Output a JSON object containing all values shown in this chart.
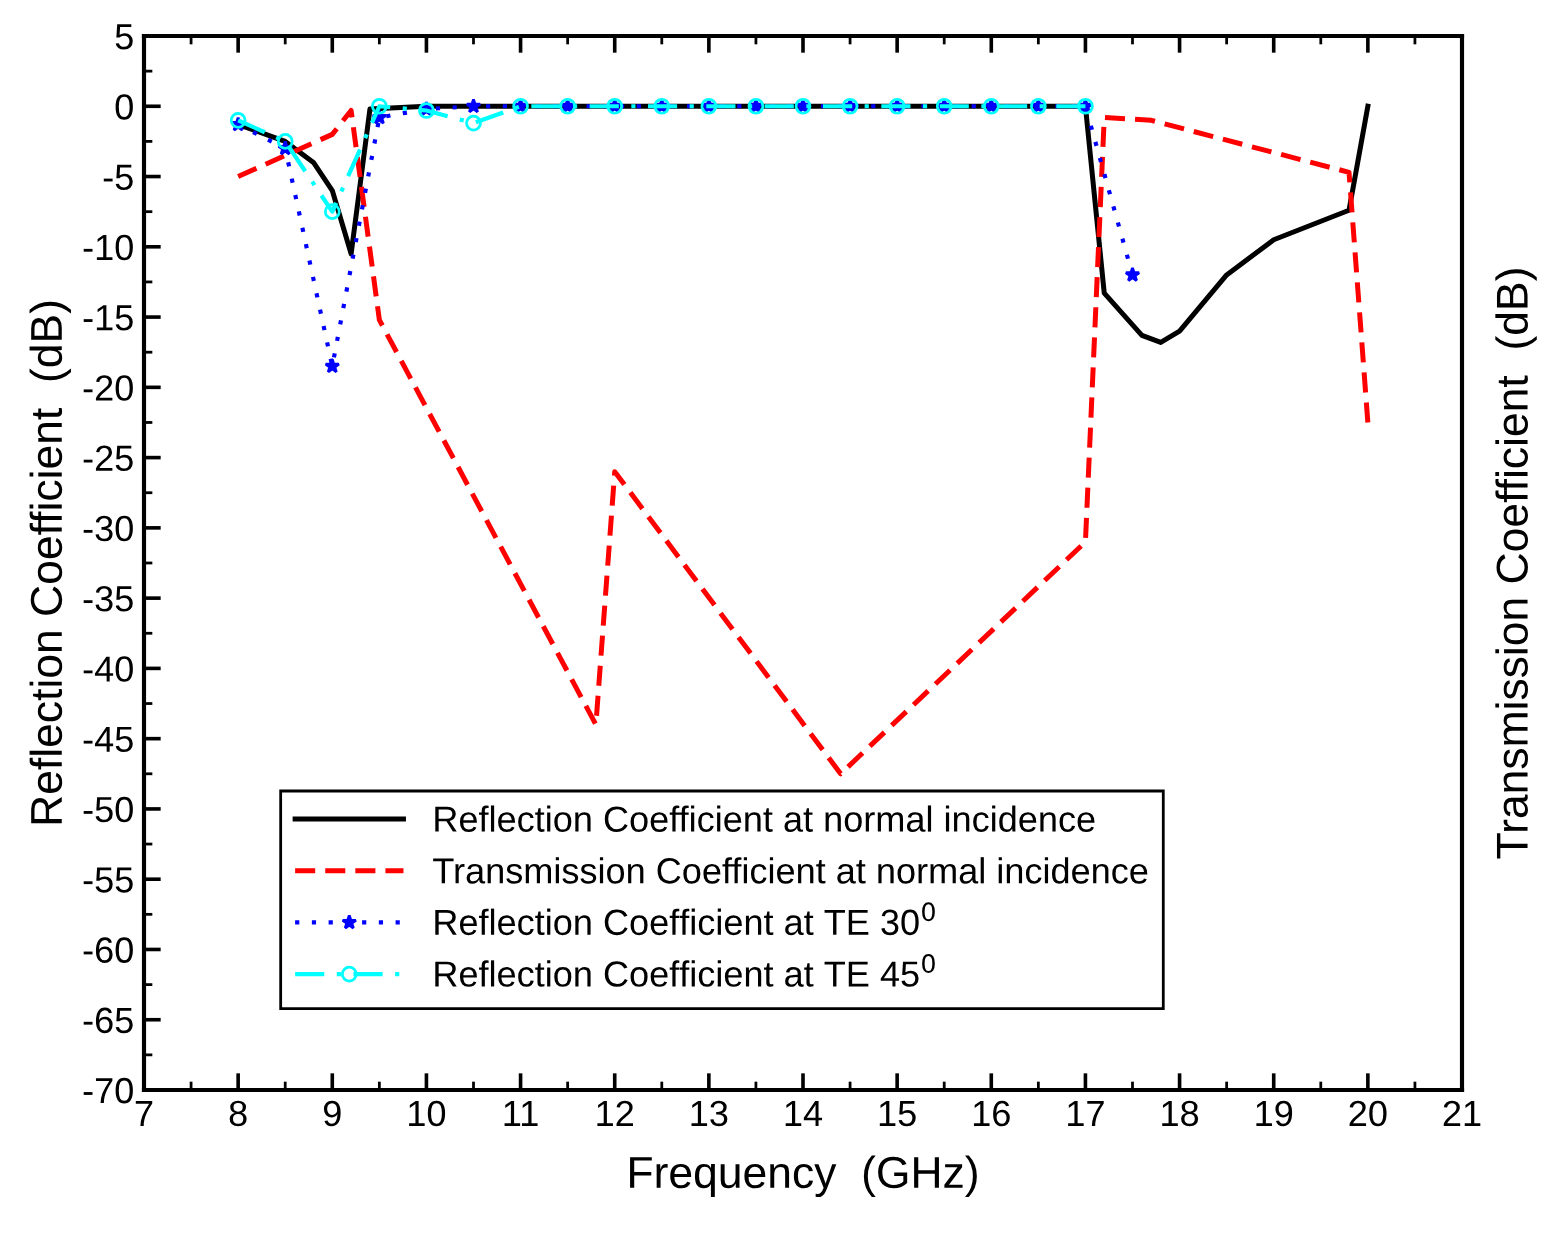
{
  "chart_data": {
    "type": "line",
    "xlabel": "Frequency  (GHz)",
    "ylabel": "Reflection Coefficient  (dB)",
    "y2label": "Transmission Coefficient  (dB)",
    "xlim": [
      7,
      21
    ],
    "xticks": [
      7,
      8,
      9,
      10,
      11,
      12,
      13,
      14,
      15,
      16,
      17,
      18,
      19,
      20,
      21
    ],
    "ylim": [
      -70,
      5
    ],
    "yticks": [
      -70,
      -65,
      -60,
      -55,
      -50,
      -45,
      -40,
      -35,
      -30,
      -25,
      -20,
      -15,
      -10,
      -5,
      0,
      5
    ],
    "grid": false,
    "legend": "bottom left",
    "series": [
      {
        "name": "Reflection Coefficient at normal incidence",
        "color": "#000000",
        "line_style": "solid",
        "marker": "none",
        "x": [
          8,
          8.5,
          8.8,
          9,
          9.2,
          9.4,
          10,
          11,
          12,
          13,
          14,
          15,
          16,
          17,
          17.2,
          17.6,
          17.8,
          18,
          18.5,
          19,
          19.8,
          20
        ],
        "values": [
          -1.3,
          -2.5,
          -4,
          -6,
          -10.5,
          -0.2,
          0,
          0,
          0,
          0,
          0,
          0,
          0,
          0,
          -13.3,
          -16.3,
          -16.8,
          -16,
          -12,
          -9.5,
          -7.4,
          0
        ]
      },
      {
        "name": "Transmission Coefficient at normal incidence",
        "color": "#ff0000",
        "line_style": "dashed",
        "marker": "none",
        "x": [
          8,
          9,
          9.2,
          9.5,
          11.8,
          12,
          14.4,
          17,
          17.2,
          17.7,
          19.8,
          20
        ],
        "values": [
          -5,
          -2,
          -0.3,
          -15.2,
          -44,
          -26,
          -47.5,
          -31,
          -0.8,
          -1,
          -4.7,
          -22.5
        ]
      },
      {
        "name": "Reflection Coefficient at TE 30$^{0}$",
        "color": "#0000ff",
        "line_style": "dotted",
        "marker": "star",
        "x": [
          8,
          8.5,
          9,
          9.5,
          10,
          10.5,
          11,
          11.5,
          12,
          12.5,
          13,
          13.5,
          14,
          14.5,
          15,
          15.5,
          16,
          16.5,
          17,
          17.5
        ],
        "values": [
          -1.3,
          -3,
          -18.5,
          -0.8,
          -0.2,
          0,
          0,
          0,
          0,
          0,
          0,
          0,
          0,
          0,
          0,
          0,
          0,
          0,
          0,
          -12
        ]
      },
      {
        "name": "Reflection Coefficient at TE 45$^{0}$",
        "color": "#00ffff",
        "line_style": "dashdot",
        "marker": "circle",
        "x": [
          8,
          8.5,
          9,
          9.5,
          10,
          10.5,
          11,
          11.5,
          12,
          12.5,
          13,
          13.5,
          14,
          14.5,
          15,
          15.5,
          16,
          16.5,
          17
        ],
        "values": [
          -1,
          -2.5,
          -7.5,
          0,
          -0.3,
          -1.2,
          0,
          0,
          0,
          0,
          0,
          0,
          0,
          0,
          0,
          0,
          0,
          0,
          0
        ]
      }
    ]
  }
}
